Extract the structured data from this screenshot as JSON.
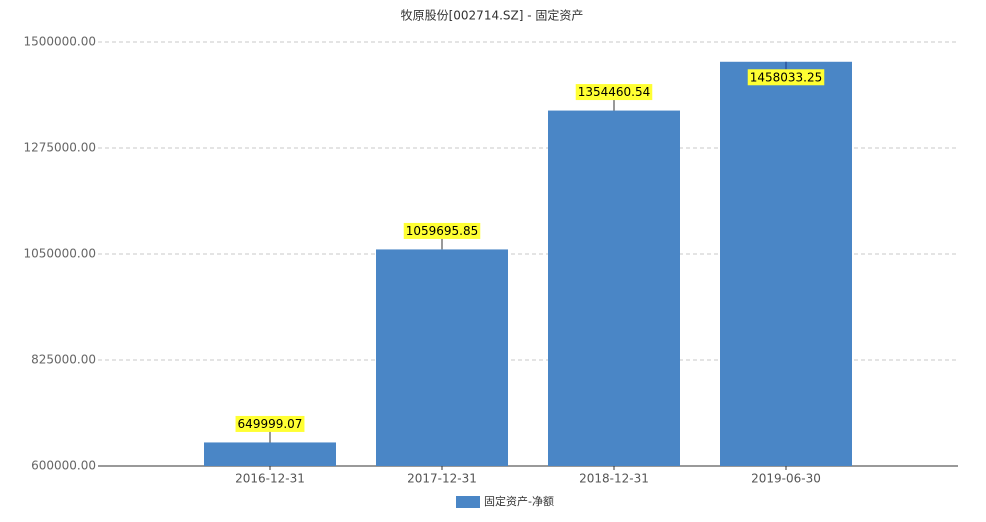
{
  "chart_data": {
    "type": "bar",
    "title": "牧原股份[002714.SZ] - 固定资产",
    "categories": [
      "2016-12-31",
      "2017-12-31",
      "2018-12-31",
      "2019-06-30"
    ],
    "series": [
      {
        "name": "固定资产-净额",
        "color": "#4a86c6",
        "values": [
          649999.07,
          1059695.85,
          1354460.54,
          1458033.25
        ]
      }
    ],
    "ylim": [
      600000,
      1500000
    ],
    "yticks": [
      {
        "value": 600000,
        "label": "600000.00"
      },
      {
        "value": 825000,
        "label": "825000.00"
      },
      {
        "value": 1050000,
        "label": "1050000.00"
      },
      {
        "value": 1275000,
        "label": "1275000.00"
      },
      {
        "value": 1500000,
        "label": "1500000.00"
      }
    ],
    "grid": true
  }
}
